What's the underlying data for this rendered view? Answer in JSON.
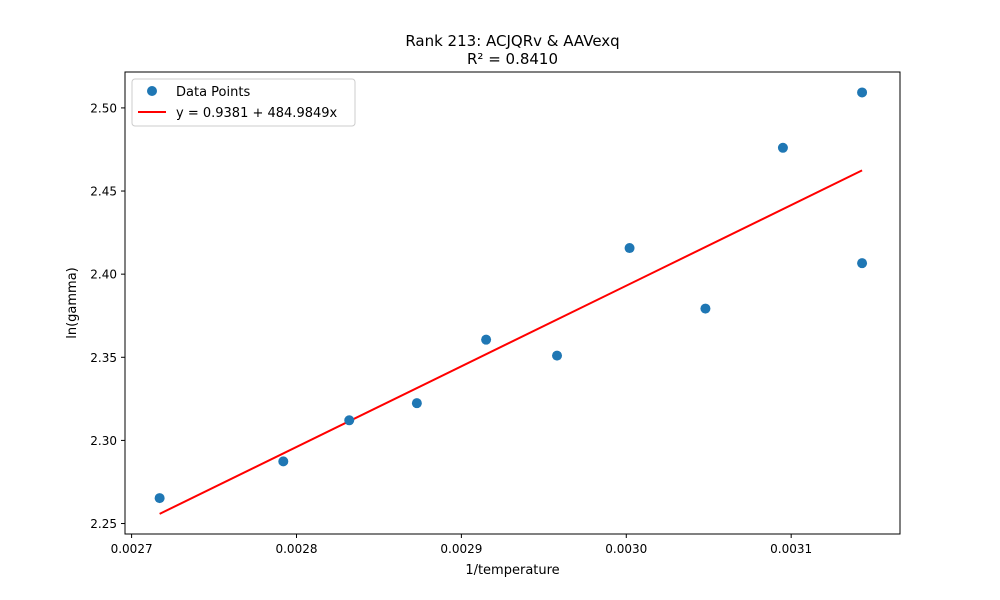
{
  "chart_data": {
    "type": "scatter",
    "title": "Rank 213: ACJQRv & AAVexq",
    "subtitle": "R² = 0.8410",
    "xlabel": "1/temperature",
    "ylabel": "ln(gamma)",
    "xlim": [
      0.002696,
      0.003166
    ],
    "ylim": [
      2.2437,
      2.5216
    ],
    "x_ticks": [
      0.0027,
      0.0028,
      0.0029,
      0.003,
      0.0031
    ],
    "x_tick_labels": [
      "0.0027",
      "0.0028",
      "0.0029",
      "0.0030",
      "0.0031"
    ],
    "y_ticks": [
      2.25,
      2.3,
      2.35,
      2.4,
      2.45,
      2.5
    ],
    "y_tick_labels": [
      "2.25",
      "2.30",
      "2.35",
      "2.40",
      "2.45",
      "2.50"
    ],
    "grid": false,
    "legend_position": "top-left",
    "series": [
      {
        "name": "Data Points",
        "kind": "scatter",
        "color": "#1f77b4",
        "x": [
          0.002717,
          0.002792,
          0.002832,
          0.002873,
          0.002915,
          0.002958,
          0.003002,
          0.003048,
          0.003095,
          0.003143,
          0.003143
        ],
        "y": [
          2.2653,
          2.2874,
          2.3121,
          2.3224,
          2.3606,
          2.351,
          2.4157,
          2.3793,
          2.476,
          2.5093,
          2.4066
        ]
      },
      {
        "name": "y = 0.9381 + 484.9849x",
        "kind": "line",
        "color": "#ff0000",
        "intercept": 0.9381,
        "slope": 484.9849,
        "x_range": [
          0.002717,
          0.003143
        ]
      }
    ]
  }
}
